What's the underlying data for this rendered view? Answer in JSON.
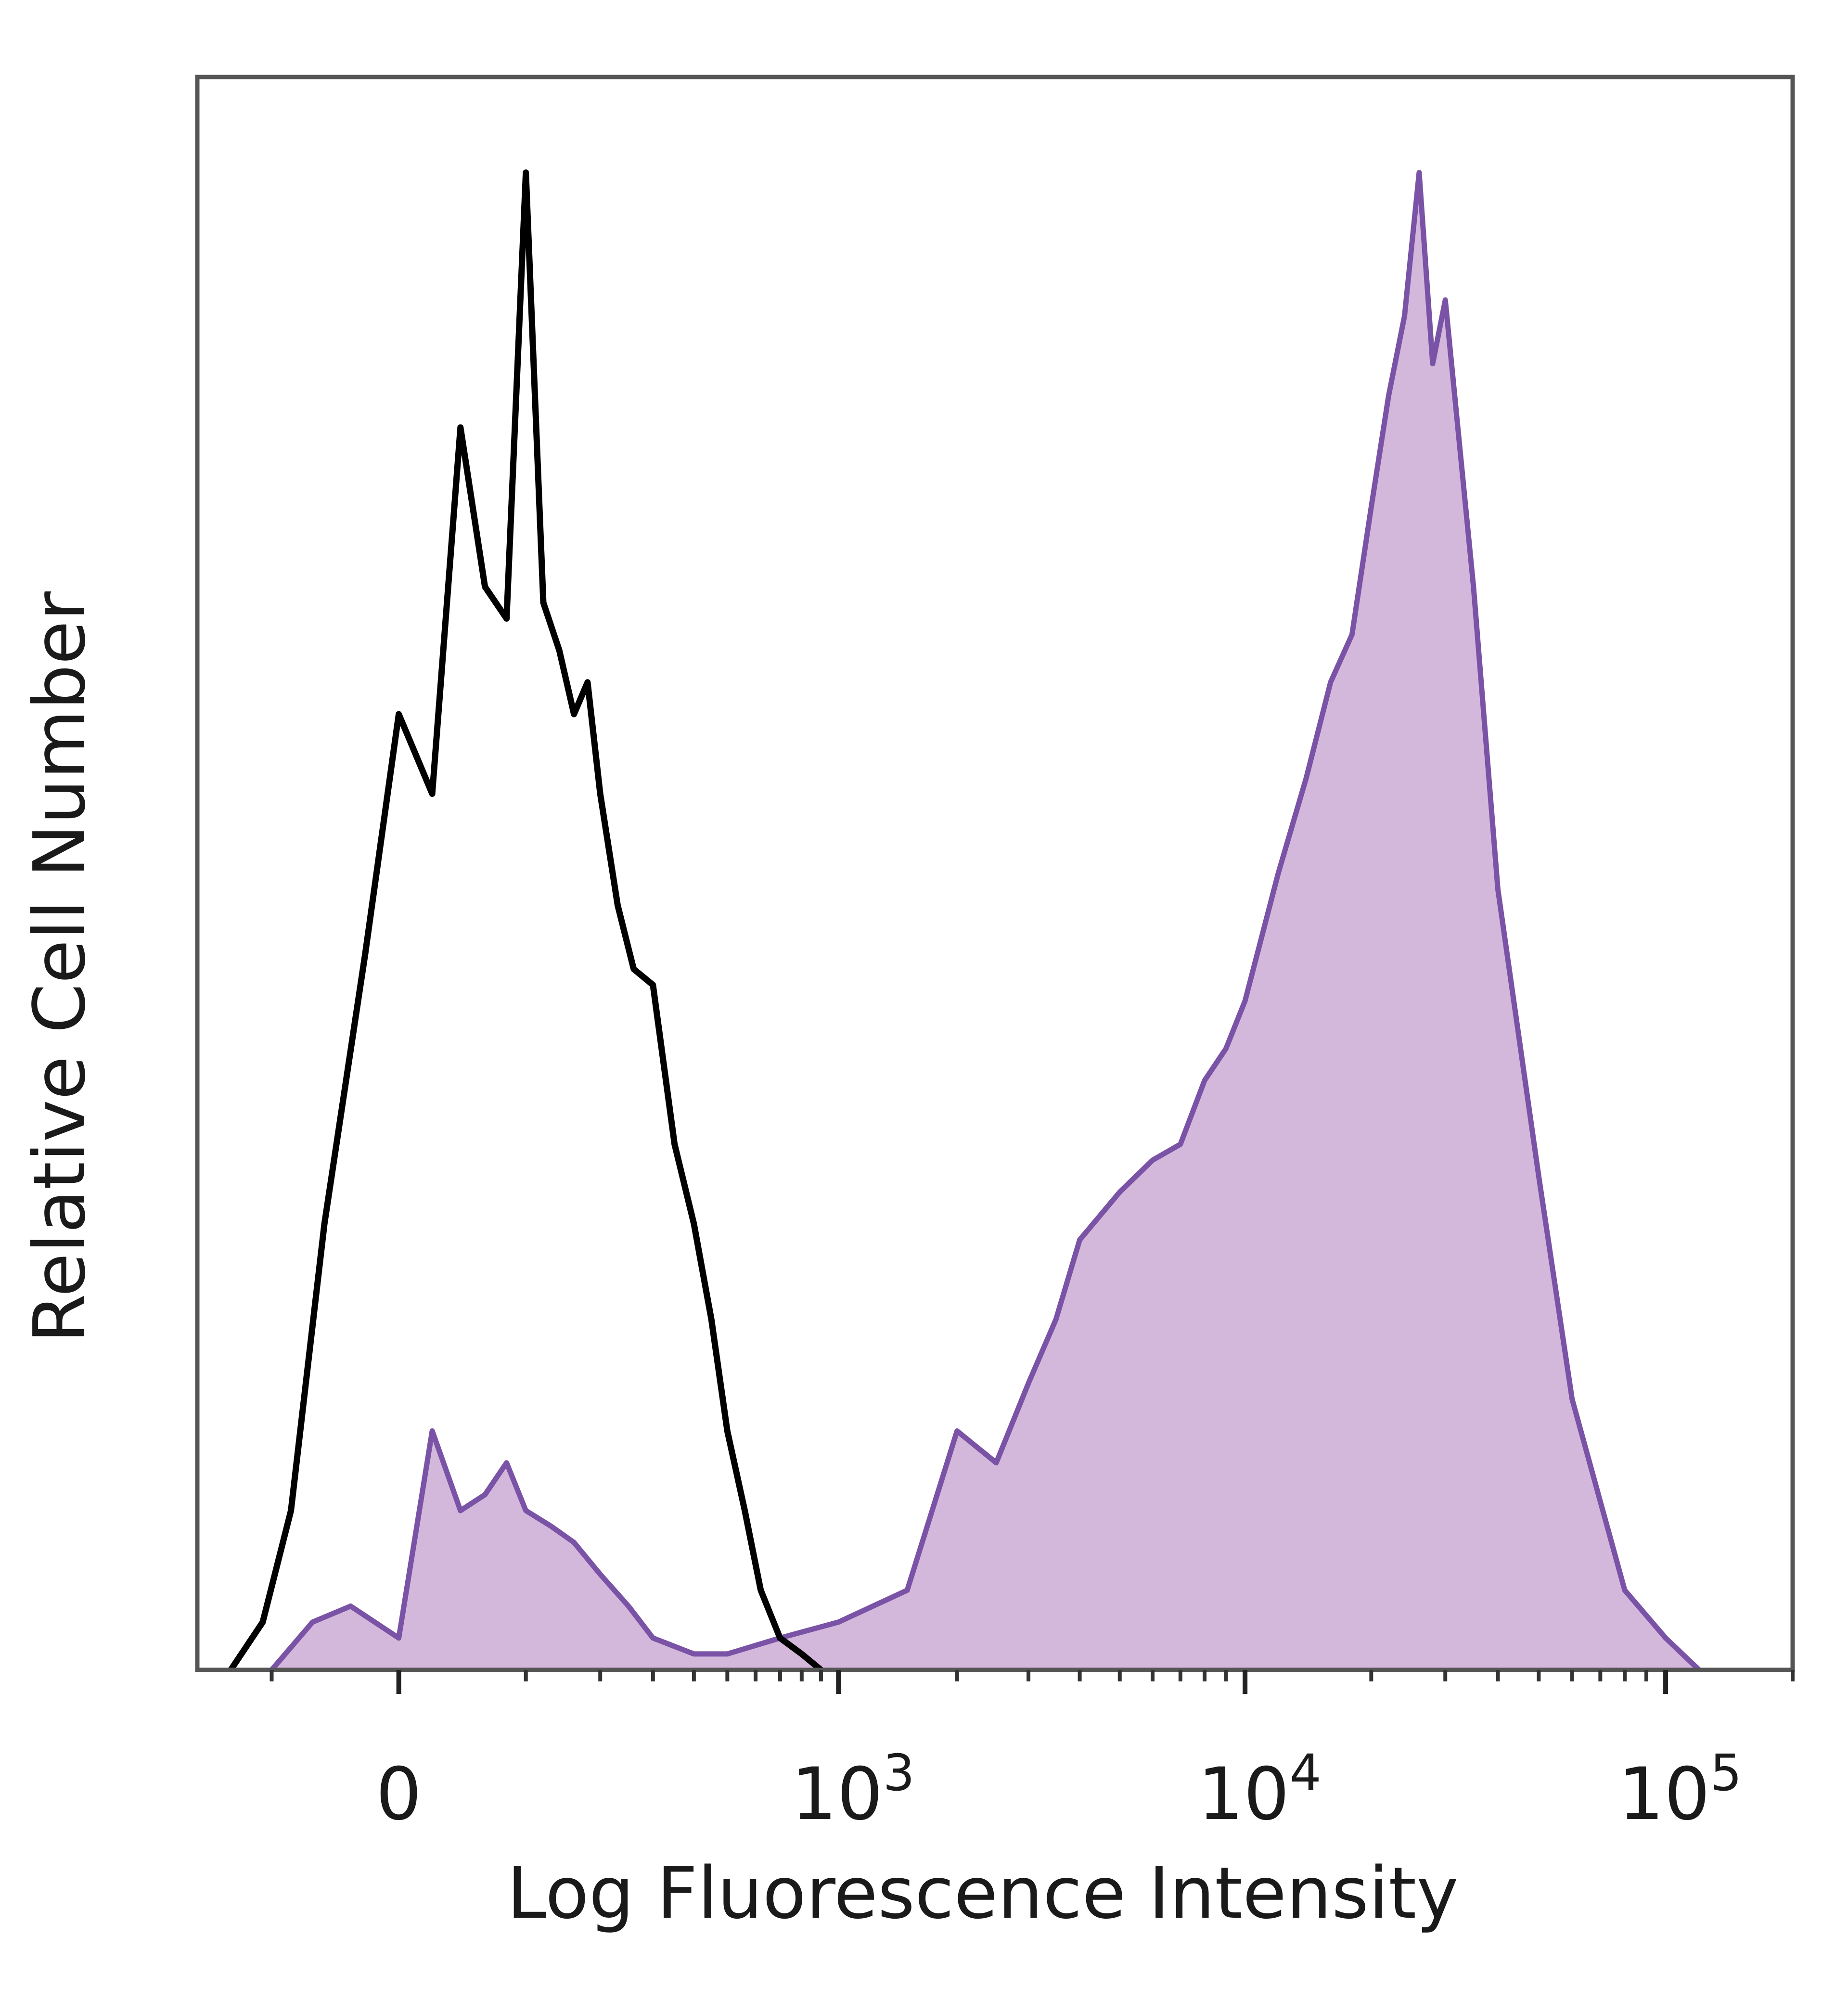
{
  "chart_data": {
    "type": "area",
    "title": "",
    "xlabel": "Log Fluorescence Intensity",
    "ylabel": "Relative Cell Number",
    "xscale": "biexponential",
    "xlim": [
      -200,
      200000
    ],
    "ylim": [
      0,
      100
    ],
    "yticks_visible": false,
    "grid": false,
    "legend": "none",
    "xticks": [
      {
        "value": 0,
        "base": "0",
        "exp": ""
      },
      {
        "value": 1000,
        "base": "10",
        "exp": "3"
      },
      {
        "value": 10000,
        "base": "10",
        "exp": "4"
      },
      {
        "value": 100000,
        "base": "10",
        "exp": "5"
      }
    ],
    "series": [
      {
        "style": "outline",
        "color": "#000000",
        "x": [
          -150,
          -110,
          -80,
          -50,
          -20,
          0,
          20,
          40,
          60,
          80,
          100,
          120,
          140,
          160,
          180,
          200,
          230,
          260,
          300,
          350,
          400,
          450,
          500,
          560,
          620,
          700,
          800,
          900
        ],
        "y": [
          0,
          3,
          10,
          28,
          45,
          60,
          55,
          78,
          68,
          66,
          94,
          67,
          64,
          60,
          62,
          55,
          48,
          44,
          43,
          33,
          28,
          22,
          15,
          10,
          5,
          2,
          1,
          0
        ]
      },
      {
        "style": "filled",
        "color": "#7a53a6",
        "fill": "#d4b8dc",
        "x": [
          -100,
          -60,
          -30,
          0,
          20,
          40,
          60,
          80,
          100,
          130,
          160,
          200,
          250,
          300,
          400,
          500,
          700,
          1000,
          1500,
          2000,
          2500,
          3000,
          3500,
          4000,
          5000,
          6000,
          7000,
          8000,
          9000,
          10000,
          12000,
          14000,
          16000,
          18000,
          20000,
          22000,
          24000,
          26000,
          28000,
          30000,
          35000,
          40000,
          50000,
          60000,
          80000,
          100000,
          120000
        ],
        "y": [
          0,
          3,
          4,
          2,
          15,
          10,
          11,
          13,
          10,
          9,
          8,
          6,
          4,
          2,
          1,
          1,
          2,
          3,
          5,
          15,
          13,
          18,
          22,
          27,
          30,
          32,
          33,
          37,
          39,
          42,
          50,
          56,
          62,
          65,
          73,
          80,
          85,
          94,
          82,
          86,
          68,
          49,
          31,
          17,
          5,
          2,
          0
        ]
      }
    ]
  }
}
